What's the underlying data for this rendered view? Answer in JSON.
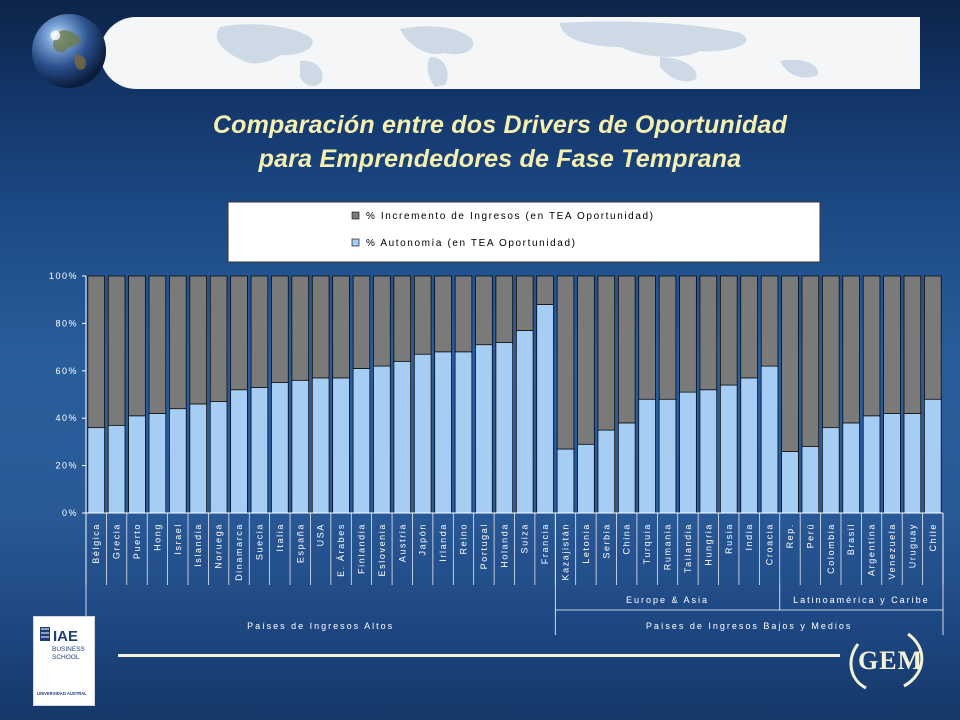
{
  "slide": {
    "title_line1": "Comparación entre dos Drivers de Oportunidad",
    "title_line2": "para Emprendedores de Fase Temprana"
  },
  "logos": {
    "iae_text": "IAE",
    "iae_sub1": "BUSINESS",
    "iae_sub2": "SCHOOL",
    "iae_univ": "UNIVERSIDAD AUSTRAL",
    "gem_text": "GEM"
  },
  "colors": {
    "series_top": "#7a7a7a",
    "series_bottom": "#a6cdf4",
    "title": "#f5efb0"
  },
  "chart_data": {
    "type": "bar",
    "stacked": true,
    "ylim": [
      0,
      100
    ],
    "yticks": [
      "0%",
      "20%",
      "40%",
      "60%",
      "80%",
      "100%"
    ],
    "legend_position": "top",
    "categories": [
      "Bélgica",
      "Grecia",
      "Puerto",
      "Hong",
      "Israel",
      "Islandia",
      "Noruega",
      "Dinamarca",
      "Suecia",
      "Italia",
      "España",
      "USA",
      "E. Árabes",
      "Finlandia",
      "Eslovenia",
      "Austria",
      "Japón",
      "Irlanda",
      "Reino",
      "Portugal",
      "Holanda",
      "Suiza",
      "Francia",
      "Kazajistán",
      "Letonia",
      "Serbia",
      "China",
      "Turquia",
      "Rumania",
      "Tailandia",
      "Hungria",
      "Rusia",
      "India",
      "Croacia",
      "Rep.",
      "Perú",
      "Colombia",
      "Brasil",
      "Argentina",
      "Venezuela",
      "Uruguay",
      "Chile"
    ],
    "series": [
      {
        "name": "% Autonomía (en TEA Oportunidad)",
        "values": [
          36,
          37,
          41,
          42,
          44,
          46,
          47,
          52,
          53,
          55,
          56,
          57,
          57,
          61,
          62,
          64,
          67,
          68,
          68,
          71,
          72,
          77,
          88,
          27,
          29,
          35,
          38,
          48,
          48,
          51,
          52,
          54,
          57,
          62,
          26,
          28,
          36,
          38,
          41,
          42,
          42,
          48
        ]
      },
      {
        "name": "% Incremento de Ingresos (en TEA Oportunidad)",
        "values": [
          64,
          63,
          59,
          58,
          56,
          54,
          53,
          48,
          47,
          45,
          44,
          43,
          43,
          39,
          38,
          36,
          33,
          32,
          32,
          29,
          28,
          23,
          12,
          73,
          71,
          65,
          62,
          52,
          52,
          49,
          48,
          46,
          43,
          38,
          74,
          72,
          64,
          62,
          59,
          58,
          58,
          52
        ]
      }
    ],
    "groups": [
      {
        "label": "Países de Ingresos Altos",
        "start": 0,
        "end": 22
      },
      {
        "label": "Países de Ingresos Bajos y Medios",
        "start": 23,
        "end": 41
      }
    ],
    "subgroups": [
      {
        "label": "Europe & Asia",
        "start": 23,
        "end": 33
      },
      {
        "label": "Latinoamérica y Caribe",
        "start": 34,
        "end": 41
      }
    ]
  }
}
